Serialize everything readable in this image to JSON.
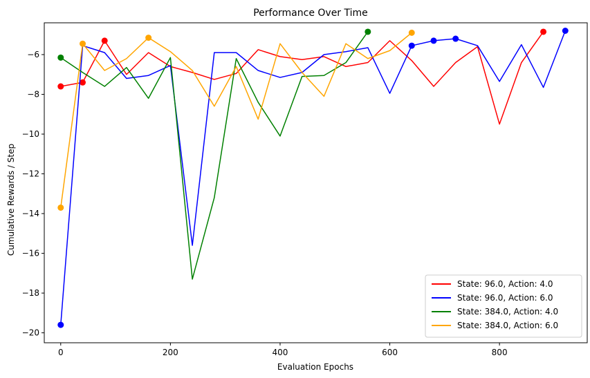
{
  "chart_data": {
    "type": "line",
    "title": "Performance Over Time",
    "xlabel": "Evaluation Epochs",
    "ylabel": "Cumulative Rewards / Step",
    "xlim": [
      -30,
      960
    ],
    "ylim": [
      -20.5,
      -4.4
    ],
    "xticks": [
      0,
      200,
      400,
      600,
      800
    ],
    "yticks": [
      -20,
      -18,
      -16,
      -14,
      -12,
      -10,
      -8,
      -6
    ],
    "grid": false,
    "legend_position": "lower-right",
    "series": [
      {
        "name": "State: 96.0, Action: 4.0",
        "color": "#ff0000",
        "x": [
          0,
          40,
          80,
          120,
          160,
          200,
          240,
          280,
          320,
          360,
          400,
          440,
          480,
          520,
          560,
          600,
          640,
          680,
          720,
          760,
          800,
          840,
          880
        ],
        "y": [
          -7.6,
          -7.4,
          -5.3,
          -7.0,
          -5.9,
          -6.6,
          -6.9,
          -7.25,
          -6.95,
          -5.75,
          -6.1,
          -6.25,
          -6.1,
          -6.6,
          -6.4,
          -5.3,
          -6.3,
          -7.6,
          -6.4,
          -5.6,
          -9.5,
          -6.4,
          -4.85
        ],
        "markers": [
          [
            0,
            -7.6
          ],
          [
            40,
            -7.4
          ],
          [
            80,
            -5.3
          ],
          [
            880,
            -4.85
          ]
        ]
      },
      {
        "name": "State: 96.0, Action: 6.0",
        "color": "#0000ff",
        "x": [
          0,
          40,
          80,
          120,
          160,
          200,
          240,
          280,
          320,
          360,
          400,
          440,
          480,
          520,
          560,
          600,
          640,
          680,
          720,
          760,
          800,
          840,
          880,
          920
        ],
        "y": [
          -19.6,
          -5.55,
          -5.9,
          -7.2,
          -7.05,
          -6.55,
          -15.6,
          -5.9,
          -5.9,
          -6.8,
          -7.15,
          -6.9,
          -6.0,
          -5.85,
          -5.65,
          -7.95,
          -5.55,
          -5.3,
          -5.2,
          -5.55,
          -7.35,
          -5.5,
          -7.65,
          -4.8
        ],
        "markers": [
          [
            0,
            -19.6
          ],
          [
            640,
            -5.55
          ],
          [
            680,
            -5.3
          ],
          [
            720,
            -5.2
          ],
          [
            920,
            -4.8
          ]
        ]
      },
      {
        "name": "State: 384.0, Action: 4.0",
        "color": "#008000",
        "x": [
          0,
          40,
          80,
          120,
          160,
          200,
          240,
          280,
          320,
          360,
          400,
          440,
          480,
          520,
          560
        ],
        "y": [
          -6.15,
          -6.9,
          -7.6,
          -6.65,
          -8.2,
          -6.15,
          -17.3,
          -13.2,
          -6.2,
          -8.4,
          -10.1,
          -7.1,
          -7.05,
          -6.4,
          -4.85
        ],
        "markers": [
          [
            0,
            -6.15
          ],
          [
            560,
            -4.85
          ]
        ]
      },
      {
        "name": "State: 384.0, Action: 6.0",
        "color": "#ffa500",
        "x": [
          0,
          40,
          80,
          120,
          160,
          200,
          240,
          280,
          320,
          360,
          400,
          440,
          480,
          520,
          560,
          600,
          640
        ],
        "y": [
          -13.7,
          -5.45,
          -6.8,
          -6.2,
          -5.15,
          -5.85,
          -6.8,
          -8.6,
          -6.6,
          -9.25,
          -5.45,
          -6.9,
          -8.1,
          -5.45,
          -6.2,
          -5.8,
          -4.9
        ],
        "markers": [
          [
            0,
            -13.7
          ],
          [
            40,
            -5.45
          ],
          [
            160,
            -5.15
          ],
          [
            640,
            -4.9
          ]
        ]
      }
    ]
  }
}
